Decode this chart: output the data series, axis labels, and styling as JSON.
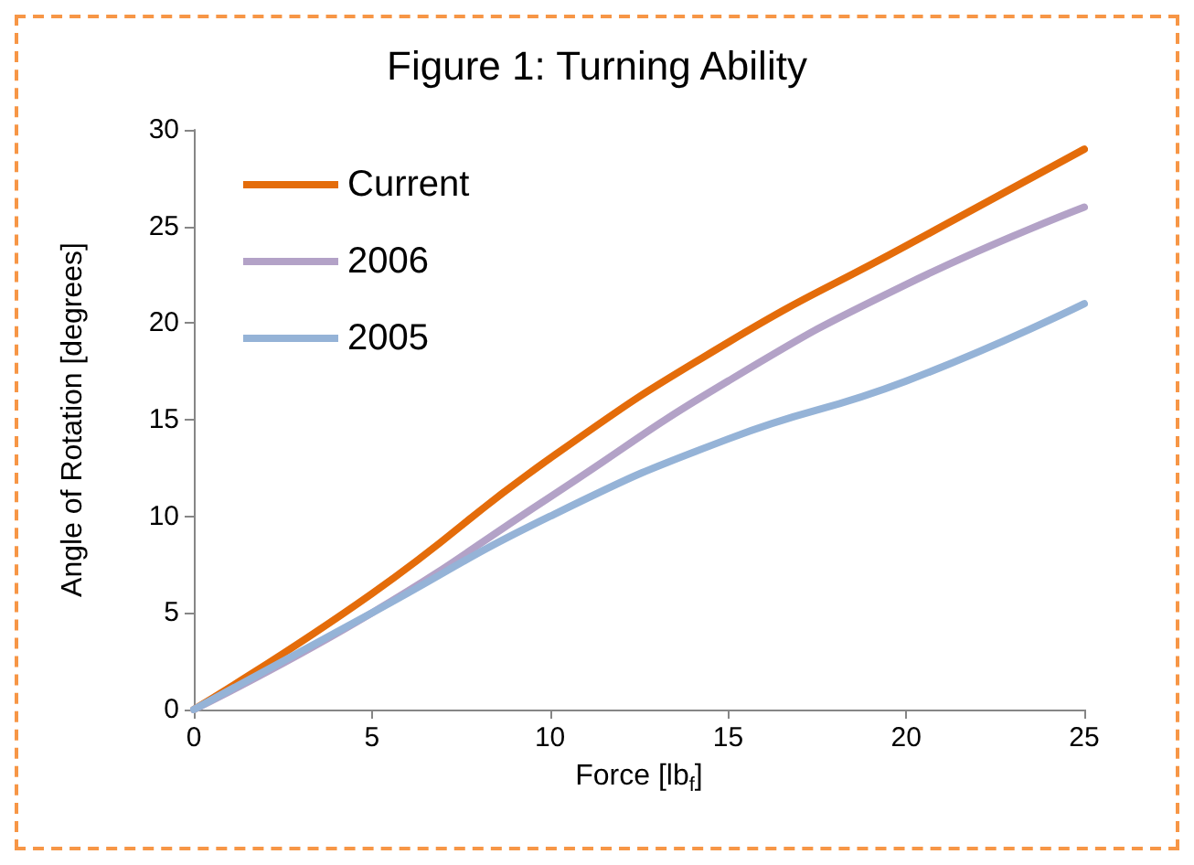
{
  "chart_data": {
    "type": "line",
    "title": "Figure 1: Turning Ability",
    "xlabel": "Force [lb$_{f}$]",
    "ylabel": "Angle of Rotation [degrees]",
    "x": [
      0,
      5,
      10,
      15,
      20,
      25
    ],
    "series": [
      {
        "name": "Current",
        "color": "#e46c0a",
        "values": [
          0,
          6,
          13,
          19,
          24,
          29
        ]
      },
      {
        "name": "2006",
        "color": "#b3a2c7",
        "values": [
          0,
          5,
          11,
          17,
          22,
          26
        ]
      },
      {
        "name": "2005",
        "color": "#95b3d7",
        "values": [
          0,
          5,
          10,
          14,
          17,
          21
        ]
      }
    ],
    "xlim": [
      0,
      25
    ],
    "xticks": [
      0,
      5,
      10,
      15,
      20,
      25
    ],
    "ylim": [
      0,
      30
    ],
    "yticks": [
      0,
      5,
      10,
      15,
      20,
      25,
      30
    ],
    "grid": false,
    "legend": "top left",
    "marker": "none",
    "line_style": "solid"
  }
}
